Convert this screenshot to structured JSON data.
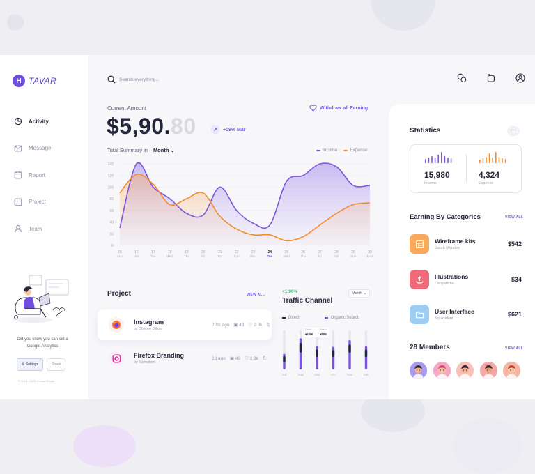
{
  "brand": {
    "name": "TAVAR",
    "logo_color": "#6f4ee0"
  },
  "sidebar": {
    "items": [
      {
        "label": "Activity",
        "icon": "activity-icon",
        "active": true
      },
      {
        "label": "Message",
        "icon": "message-icon",
        "active": false
      },
      {
        "label": "Report",
        "icon": "calendar-icon",
        "active": false
      },
      {
        "label": "Project",
        "icon": "project-icon",
        "active": false
      },
      {
        "label": "Team",
        "icon": "user-icon",
        "active": false
      }
    ],
    "promo_text": "Did you know you can set a Google Analytics",
    "settings_label": "Settings",
    "share_label": "Share",
    "copyright": "© 2018 - 2020 Conrad Rocks"
  },
  "topbar": {
    "search_placeholder": "Search everything...",
    "icons": [
      "chat-icon",
      "notification-icon",
      "profile-icon"
    ]
  },
  "amount": {
    "label": "Current Amount",
    "main": "$5,90.",
    "cents": "80",
    "growth": "+08% Mar",
    "withdraw_label": "Withdraw all Earning"
  },
  "summary": {
    "label": "Total Summary in",
    "period": "Month",
    "legend_income": "Income",
    "legend_expense": "Expense"
  },
  "chart_data": {
    "type": "area",
    "title": "",
    "xlabel": "",
    "ylabel": "",
    "ylim": [
      0,
      140
    ],
    "y_ticks": [
      0,
      20,
      40,
      60,
      80,
      100,
      120,
      140
    ],
    "x_days": [
      "15",
      "16",
      "17",
      "18",
      "19",
      "20",
      "21",
      "22",
      "23",
      "24",
      "25",
      "26",
      "27",
      "28",
      "29",
      "30"
    ],
    "x_weekdays": [
      "Sun",
      "Mon",
      "Tue",
      "Wed",
      "Thu",
      "Fri",
      "Sat",
      "Sun",
      "Mon",
      "Tue",
      "Wed",
      "Thu",
      "Fri",
      "Sat",
      "Sun",
      "Mon"
    ],
    "highlight_index": 9,
    "series": [
      {
        "name": "Income",
        "color": "#7b55dd",
        "values": [
          30,
          140,
          100,
          80,
          55,
          52,
          100,
          60,
          38,
          35,
          110,
          120,
          140,
          135,
          103,
          103
        ]
      },
      {
        "name": "Expense",
        "color": "#f28c2c",
        "values": [
          90,
          122,
          105,
          70,
          80,
          90,
          50,
          28,
          18,
          18,
          8,
          15,
          35,
          55,
          70,
          73
        ]
      }
    ]
  },
  "project": {
    "title": "Project",
    "view_all": "VIEW ALL",
    "items": [
      {
        "name": "Instagram",
        "by": "by Sheree Dillon",
        "time": "22m ago",
        "messages": "43",
        "likes": "2.8k",
        "icon": "firefox-icon",
        "icon_color": "#ff7139"
      },
      {
        "name": "Firefox Branding",
        "by": "by Ramation",
        "time": "2d ago",
        "messages": "43",
        "likes": "2.8k",
        "icon": "instagram-icon",
        "icon_color": "#d6249f"
      }
    ]
  },
  "traffic": {
    "growth": "+1.90%",
    "title": "Traffic Channel",
    "period": "Month",
    "legend_direct": "Direct",
    "legend_organic": "Organic Search",
    "tooltip": {
      "direct_label": "Direct",
      "direct_value": "4.5K",
      "search_label": "Search",
      "search_value": "506"
    },
    "chart_data": {
      "type": "bar",
      "categories": [
        "Jul",
        "Aug",
        "Sep",
        "Oct",
        "Nov",
        "Dec"
      ],
      "series": [
        {
          "name": "Direct",
          "color": "#23263b",
          "values": [
            45,
            70,
            55,
            50,
            60,
            55
          ]
        },
        {
          "name": "Organic Search",
          "color": "#7b55dd",
          "values": [
            40,
            80,
            60,
            58,
            75,
            60
          ]
        }
      ],
      "ylim": [
        0,
        100
      ]
    }
  },
  "statistics": {
    "title": "Statistics",
    "more_icon": "more-dots-icon",
    "income_value": "15,980",
    "income_label": "Income",
    "expense_value": "4,324",
    "expense_label": "Expense",
    "income_color": "#7b55dd",
    "expense_color": "#f28c2c"
  },
  "categories": {
    "title": "Earning By Categories",
    "view_all": "VIEW ALL",
    "items": [
      {
        "name": "Wireframe kits",
        "by": "Jacob Morales",
        "amount": "$542",
        "color": "#f7a95c",
        "icon": "grid-icon"
      },
      {
        "name": "Illustrations",
        "by": "Cimpanzee",
        "amount": "$34",
        "color": "#f06a7a",
        "icon": "upload-icon"
      },
      {
        "name": "User Interface",
        "by": "Squirrelont",
        "amount": "$621",
        "color": "#9ecdf3",
        "icon": "folder-icon"
      }
    ]
  },
  "members": {
    "title": "28 Members",
    "view_all": "VIEW ALL",
    "avatars": [
      {
        "bg": "#a79af0",
        "skin": "#f2b48f",
        "hair": "#3a2d28"
      },
      {
        "bg": "#f4a9c4",
        "skin": "#f5c7a1",
        "hair": "#d1457a"
      },
      {
        "bg": "#f7c1b8",
        "skin": "#f2b48f",
        "hair": "#2b2233"
      },
      {
        "bg": "#f4a7a7",
        "skin": "#e9a57e",
        "hair": "#3a2d28"
      },
      {
        "bg": "#f7b6a3",
        "skin": "#f5c7a1",
        "hair": "#c0413b"
      }
    ]
  }
}
